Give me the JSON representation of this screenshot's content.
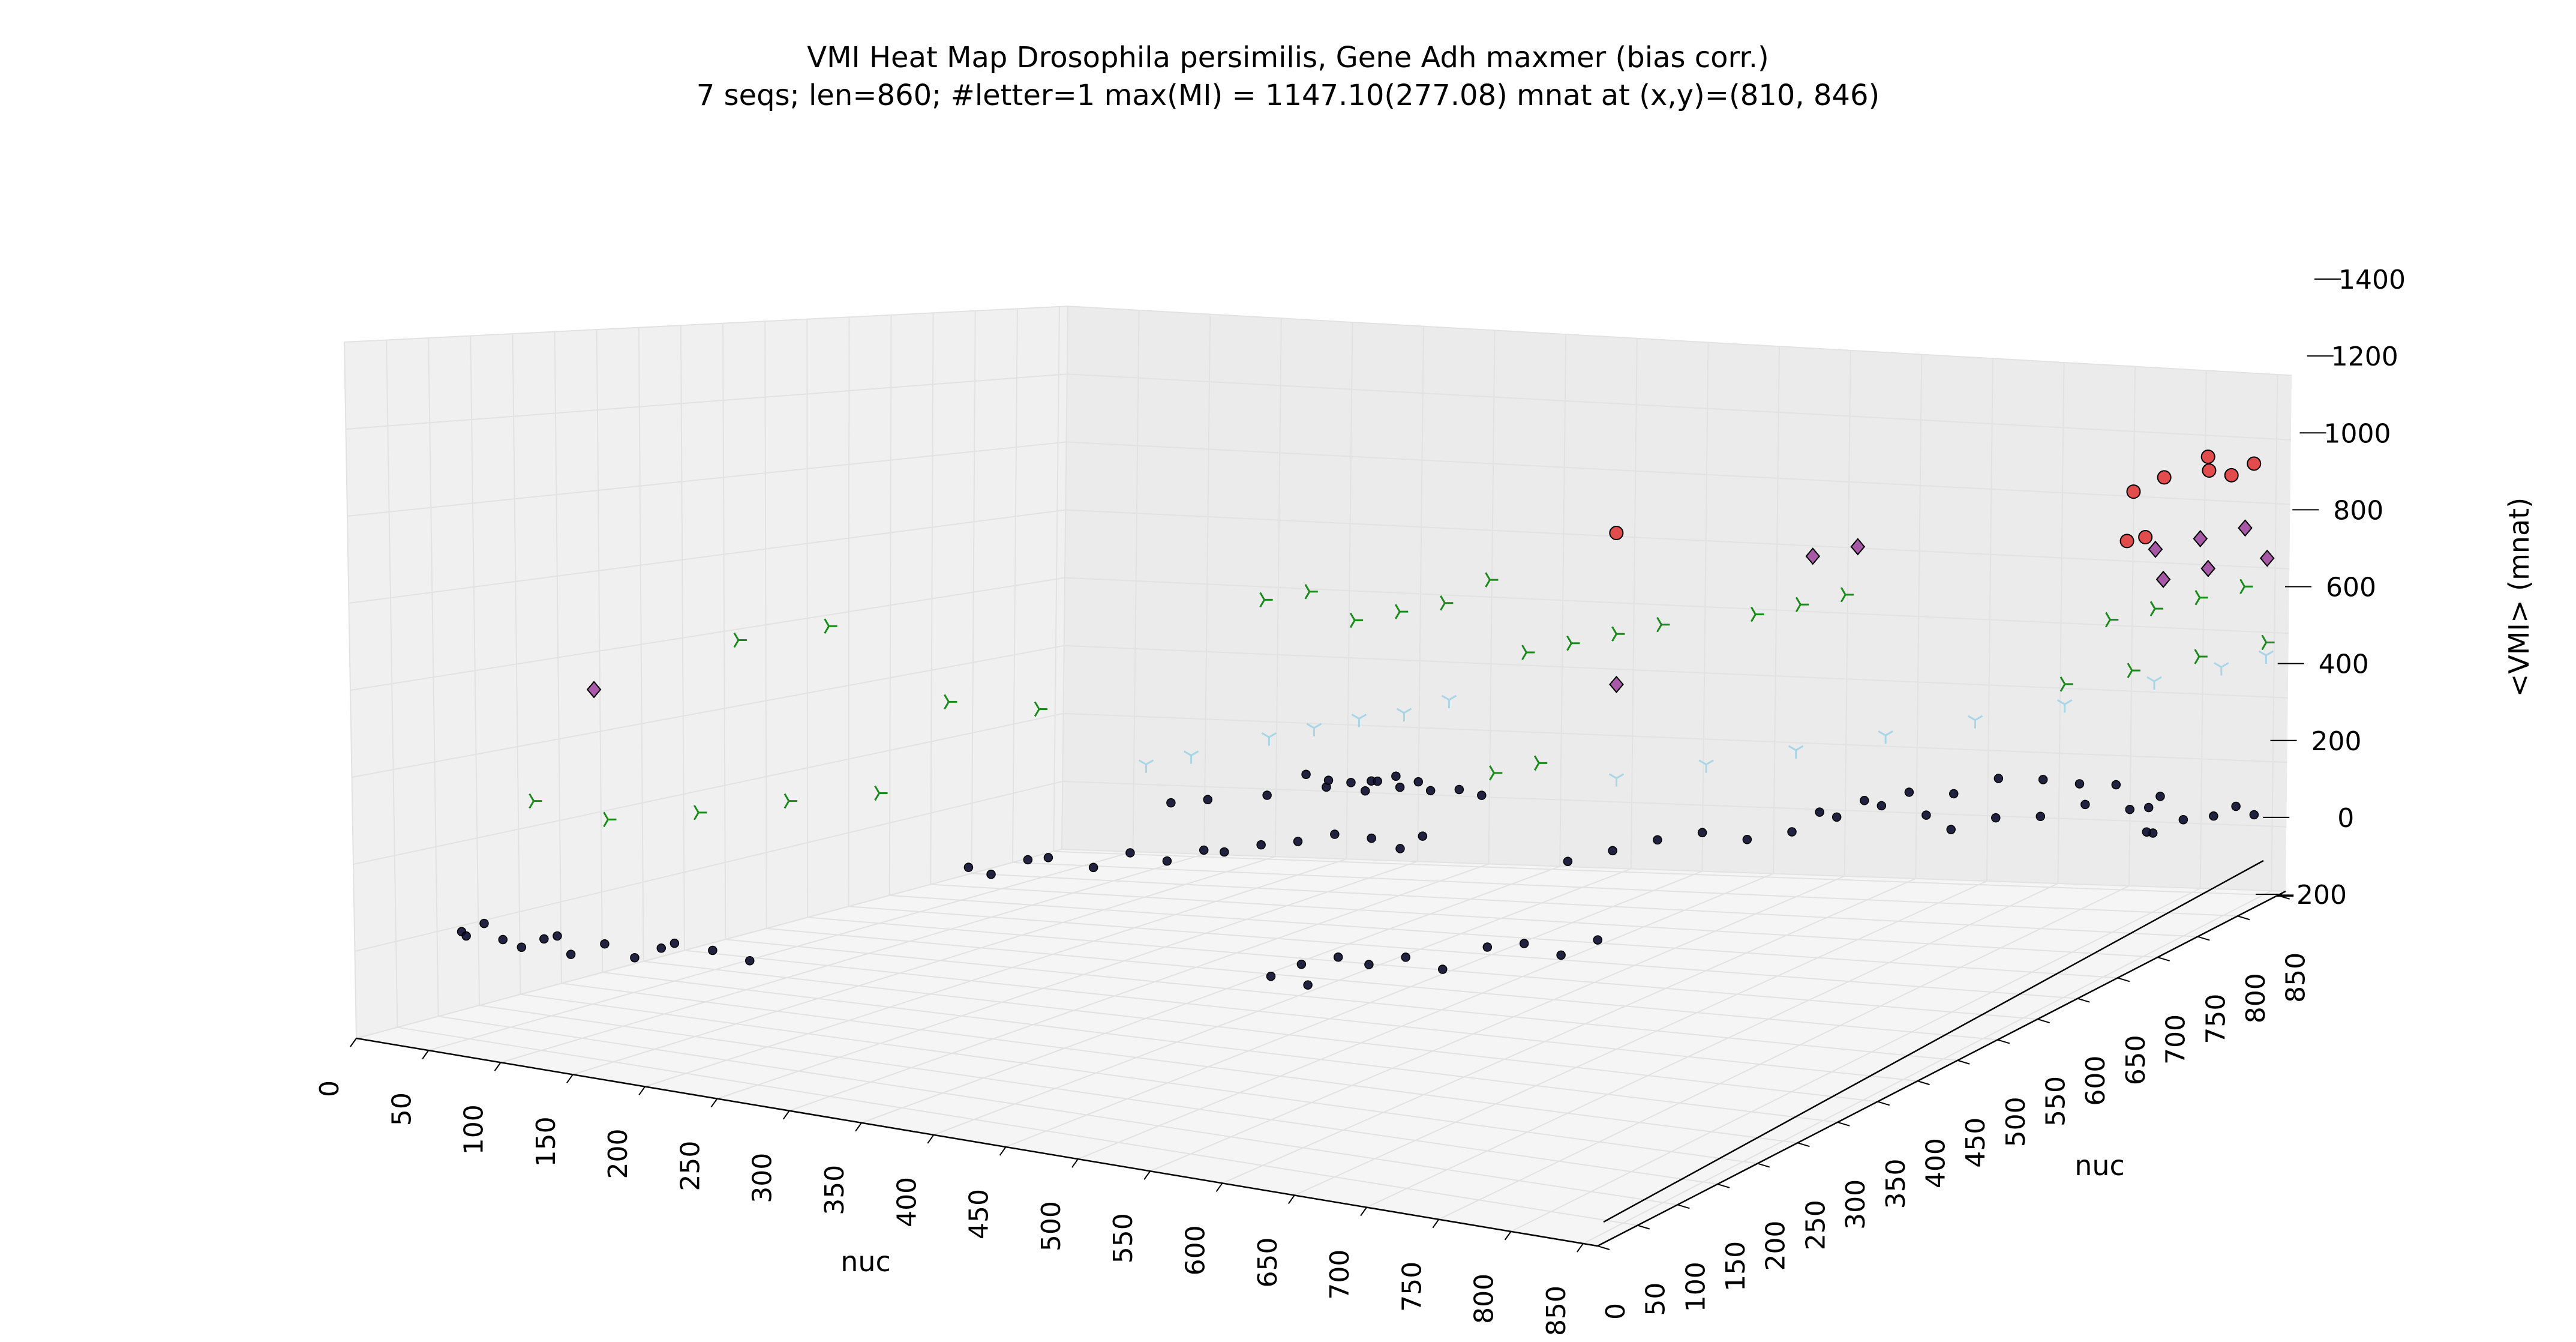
{
  "chart_data": {
    "type": "scatter",
    "projection": "3d",
    "title": "VMI Heat Map Drosophila persimilis, Gene Adh maxmer (bias corr.)",
    "subtitle": "7 seqs; len=860; #letter=1 max(MI) = 1147.10(277.08) mnat at (x,y)=(810, 846)",
    "xlabel": "nuc",
    "ylabel": "nuc",
    "zlabel": "<VMI> (mnat)",
    "xlim": [
      0,
      860
    ],
    "ylim": [
      0,
      860
    ],
    "zlim": [
      -200,
      1400
    ],
    "x_ticks": [
      "0",
      "50",
      "100",
      "150",
      "200",
      "250",
      "300",
      "350",
      "400",
      "450",
      "500",
      "550",
      "600",
      "650",
      "700",
      "750",
      "800",
      "850"
    ],
    "y_ticks": [
      "0",
      "50",
      "100",
      "150",
      "200",
      "250",
      "300",
      "350",
      "400",
      "450",
      "500",
      "550",
      "600",
      "650",
      "700",
      "750",
      "800",
      "850"
    ],
    "z_ticks": [
      "−200",
      "0",
      "200",
      "400",
      "600",
      "800",
      "1000",
      "1200",
      "1400"
    ],
    "grid": true,
    "legend": "none",
    "colors": {
      "pane_left": "#f0f0f0",
      "pane_back": "#ebebeb",
      "pane_floor": "#f5f5f5",
      "grid": "#e2e2e2",
      "low_points": "#0b0b2e",
      "light_blue_markers": "#a9d6e6",
      "green_markers": "#1a8a1a",
      "purple_diamonds": "#8a1a8a",
      "red_circles": "#e03030"
    },
    "series": [
      {
        "marker": "circle-small",
        "color": "#0b0b2e",
        "points": [
          [
            40,
            60,
            40
          ],
          [
            42,
            62,
            30
          ],
          [
            50,
            70,
            60
          ],
          [
            60,
            75,
            25
          ],
          [
            70,
            80,
            10
          ],
          [
            80,
            90,
            30
          ],
          [
            95,
            80,
            50
          ],
          [
            110,
            70,
            20
          ],
          [
            125,
            85,
            45
          ],
          [
            140,
            95,
            15
          ],
          [
            150,
            110,
            35
          ],
          [
            165,
            100,
            60
          ],
          [
            180,
            120,
            40
          ],
          [
            200,
            130,
            20
          ],
          [
            210,
            380,
            110
          ],
          [
            220,
            390,
            90
          ],
          [
            240,
            400,
            130
          ],
          [
            260,
            390,
            150
          ],
          [
            280,
            410,
            120
          ],
          [
            300,
            420,
            160
          ],
          [
            320,
            430,
            140
          ],
          [
            340,
            440,
            170
          ],
          [
            360,
            430,
            180
          ],
          [
            380,
            440,
            200
          ],
          [
            400,
            450,
            210
          ],
          [
            420,
            460,
            230
          ],
          [
            440,
            470,
            220
          ],
          [
            460,
            470,
            200
          ],
          [
            470,
            480,
            230
          ],
          [
            300,
            470,
            260
          ],
          [
            320,
            480,
            270
          ],
          [
            350,
            500,
            280
          ],
          [
            380,
            520,
            300
          ],
          [
            400,
            540,
            310
          ],
          [
            410,
            530,
            320
          ],
          [
            420,
            540,
            300
          ],
          [
            430,
            560,
            280
          ],
          [
            450,
            560,
            290
          ],
          [
            460,
            570,
            270
          ],
          [
            320,
            600,
            260
          ],
          [
            330,
            610,
            240
          ],
          [
            340,
            620,
            230
          ],
          [
            350,
            620,
            210
          ],
          [
            360,
            640,
            240
          ],
          [
            370,
            650,
            220
          ],
          [
            500,
            240,
            60
          ],
          [
            510,
            260,
            80
          ],
          [
            520,
            250,
            40
          ],
          [
            530,
            270,
            100
          ],
          [
            540,
            290,
            70
          ],
          [
            560,
            300,
            90
          ],
          [
            580,
            310,
            60
          ],
          [
            600,
            330,
            110
          ],
          [
            620,
            340,
            120
          ],
          [
            640,
            350,
            90
          ],
          [
            660,
            360,
            130
          ],
          [
            560,
            500,
            180
          ],
          [
            580,
            520,
            200
          ],
          [
            600,
            540,
            220
          ],
          [
            620,
            560,
            230
          ],
          [
            640,
            580,
            200
          ],
          [
            660,
            600,
            210
          ],
          [
            680,
            620,
            240
          ],
          [
            700,
            640,
            260
          ],
          [
            720,
            660,
            220
          ],
          [
            600,
            740,
            120
          ],
          [
            620,
            760,
            140
          ],
          [
            640,
            780,
            150
          ],
          [
            660,
            800,
            130
          ],
          [
            680,
            820,
            160
          ],
          [
            700,
            840,
            140
          ],
          [
            720,
            850,
            120
          ],
          [
            740,
            860,
            110
          ],
          [
            760,
            620,
            230
          ],
          [
            780,
            640,
            250
          ],
          [
            800,
            660,
            240
          ],
          [
            820,
            680,
            260
          ],
          [
            840,
            700,
            230
          ],
          [
            850,
            720,
            250
          ],
          [
            800,
            800,
            40
          ],
          [
            810,
            820,
            60
          ],
          [
            820,
            840,
            50
          ],
          [
            830,
            850,
            70
          ],
          [
            840,
            855,
            40
          ],
          [
            790,
            810,
            30
          ],
          [
            780,
            830,
            80
          ]
        ]
      },
      {
        "marker": "tri-down",
        "color": "#a9d6e6",
        "points": [
          [
            340,
            520,
            420
          ],
          [
            360,
            540,
            440
          ],
          [
            380,
            560,
            460
          ],
          [
            400,
            580,
            470
          ],
          [
            420,
            600,
            500
          ],
          [
            300,
            440,
            380
          ],
          [
            320,
            460,
            400
          ],
          [
            560,
            560,
            360
          ],
          [
            600,
            600,
            380
          ],
          [
            640,
            640,
            400
          ],
          [
            680,
            680,
            420
          ],
          [
            720,
            720,
            440
          ],
          [
            760,
            760,
            460
          ],
          [
            800,
            800,
            500
          ],
          [
            830,
            830,
            520
          ],
          [
            850,
            850,
            540
          ]
        ]
      },
      {
        "marker": "tri-right",
        "color": "#1a8a1a",
        "points": [
          [
            80,
            80,
            360
          ],
          [
            120,
            100,
            330
          ],
          [
            160,
            140,
            350
          ],
          [
            200,
            180,
            380
          ],
          [
            240,
            220,
            400
          ],
          [
            120,
            260,
            700
          ],
          [
            160,
            300,
            740
          ],
          [
            220,
            340,
            560
          ],
          [
            260,
            380,
            540
          ],
          [
            360,
            480,
            820
          ],
          [
            380,
            500,
            840
          ],
          [
            400,
            520,
            760
          ],
          [
            420,
            540,
            780
          ],
          [
            440,
            560,
            800
          ],
          [
            460,
            580,
            860
          ],
          [
            520,
            520,
            720
          ],
          [
            540,
            540,
            740
          ],
          [
            560,
            560,
            760
          ],
          [
            580,
            580,
            780
          ],
          [
            600,
            660,
            760
          ],
          [
            620,
            680,
            780
          ],
          [
            640,
            700,
            800
          ],
          [
            520,
            480,
            420
          ],
          [
            540,
            500,
            440
          ],
          [
            780,
            780,
            700
          ],
          [
            800,
            800,
            720
          ],
          [
            820,
            820,
            740
          ],
          [
            840,
            840,
            760
          ],
          [
            760,
            760,
            520
          ],
          [
            790,
            790,
            540
          ],
          [
            820,
            820,
            560
          ],
          [
            850,
            850,
            580
          ]
        ]
      },
      {
        "marker": "diamond",
        "color": "#8a1a8a",
        "points": [
          [
            100,
            120,
            620
          ],
          [
            560,
            560,
            620
          ],
          [
            640,
            660,
            940
          ],
          [
            660,
            680,
            960
          ],
          [
            800,
            800,
            900
          ],
          [
            820,
            820,
            920
          ],
          [
            840,
            840,
            940
          ],
          [
            800,
            810,
            800
          ],
          [
            820,
            830,
            820
          ],
          [
            850,
            850,
            840
          ]
        ]
      },
      {
        "marker": "circle",
        "color": "#e03030",
        "points": [
          [
            560,
            560,
            1040
          ],
          [
            790,
            790,
            1080
          ],
          [
            810,
            846,
            1147.1
          ],
          [
            820,
            830,
            1120
          ],
          [
            800,
            810,
            1110
          ],
          [
            830,
            840,
            1100
          ],
          [
            840,
            850,
            1130
          ],
          [
            780,
            800,
            920
          ],
          [
            790,
            805,
            930
          ]
        ]
      }
    ]
  }
}
